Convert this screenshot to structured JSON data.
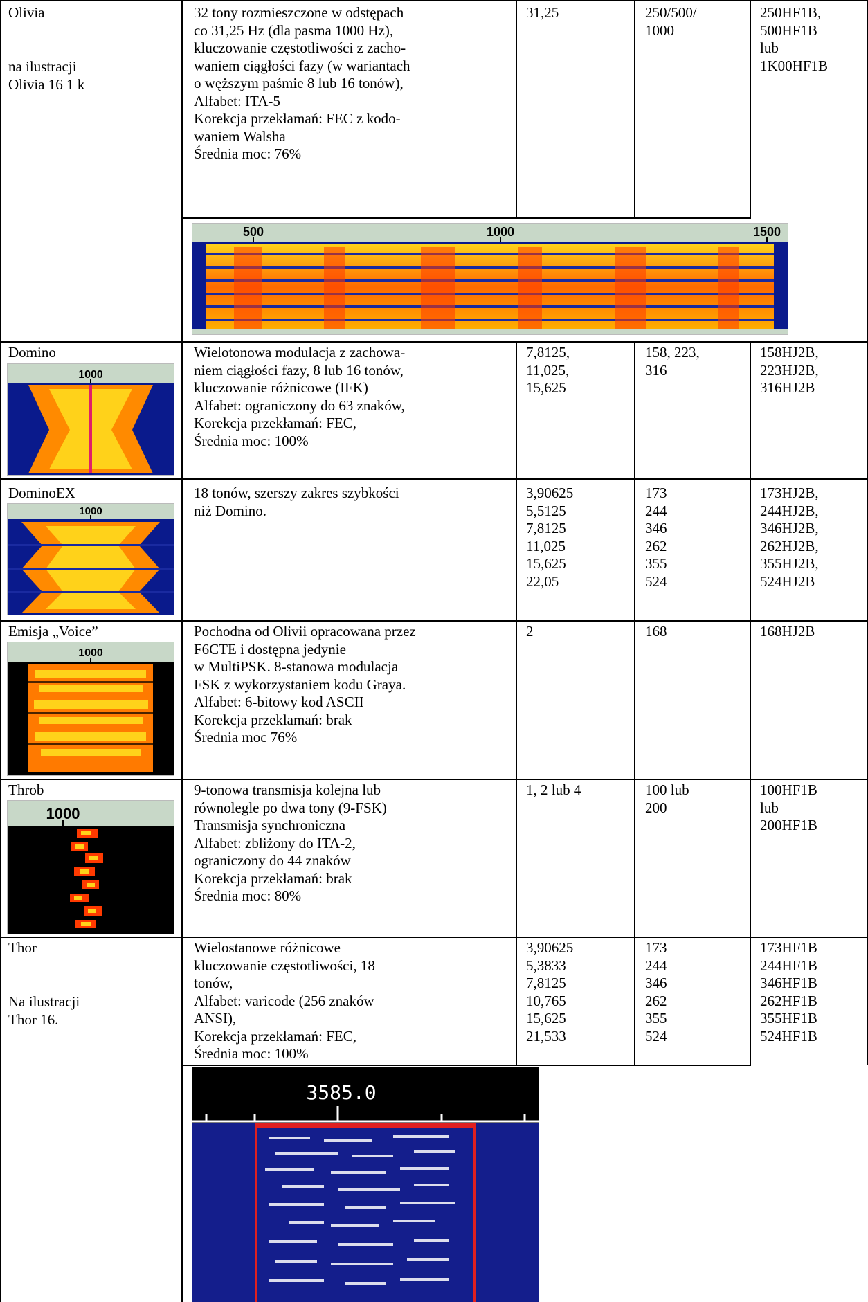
{
  "rows": [
    {
      "mode": "Olivia",
      "mode_note": "na ilustracji\nOlivia 16 1 k",
      "description": "32 tony rozmieszczone w odstępach\nco 31,25 Hz (dla pasma 1000 Hz),\nkluczowanie częstotliwości z zacho-\nwaniem ciągłości fazy (w wariantach\no węższym paśmie 8 lub 16 tonów),\nAlfabet: ITA-5\nKorekcja przekłamań: FEC z kodo-\nwaniem Walsha\nŚrednia moc: 76%",
      "speed": "31,25",
      "bandwidth": "250/500/\n1000",
      "designation": "250HF1B,\n500HF1B\nlub\n1K00HF1B",
      "spectrum_scale": [
        "500",
        "1000",
        "1500"
      ]
    },
    {
      "mode": "Domino",
      "description": "Wielotonowa modulacja z zachowa-\nniem ciągłości fazy, 8 lub 16 tonów,\nkluczowanie różnicowe (IFK)\nAlfabet: ograniczony do 63 znaków,\nKorekcja przekłamań: FEC,\nŚrednia moc: 100%",
      "speed": "7,8125,\n11,025,\n15,625",
      "bandwidth": "158, 223,\n316",
      "designation": "158HJ2B,\n223HJ2B,\n316HJ2B",
      "spectrum_scale": "1000"
    },
    {
      "mode": "DominoEX",
      "description": "18 tonów, szerszy zakres szybkości\nniż Domino.",
      "speed": "3,90625\n5,5125\n7,8125\n11,025\n15,625\n22,05",
      "bandwidth": "173\n244\n346\n262\n355\n524",
      "designation": "173HJ2B,\n244HJ2B,\n346HJ2B,\n262HJ2B,\n355HJ2B,\n524HJ2B",
      "spectrum_scale": "1000"
    },
    {
      "mode": "Emisja „Voice”",
      "description": "Pochodna od Olivii opracowana przez\nF6CTE i dostępna jedynie\nw MultiPSK. 8-stanowa modulacja\nFSK z wykorzystaniem kodu Graya.\nAlfabet: 6-bitowy kod ASCII\nKorekcja przeklamań: brak\nŚrednia moc 76%",
      "speed": "2",
      "bandwidth": "168",
      "designation": "168HJ2B",
      "spectrum_scale": "1000"
    },
    {
      "mode": "Throb",
      "description": "9-tonowa transmisja kolejna lub\nrównolegle po dwa tony (9-FSK)\nTransmisja synchroniczna\nAlfabet: zbliżony do ITA-2,\nograniczony do 44 znaków\nKorekcja przekłamań: brak\nŚrednia moc: 80%",
      "speed": "1, 2 lub 4",
      "bandwidth": "100 lub\n200",
      "designation": "100HF1B\nlub\n200HF1B",
      "spectrum_scale": "1000"
    },
    {
      "mode": "Thor",
      "mode_note": "Na ilustracji\nThor 16.",
      "description": "Wielostanowe różnicowe\nkluczowanie częstotliwości, 18\ntonów,\nAlfabet: varicode (256 znaków\nANSI),\nKorekcja przekłamań: FEC,\nŚrednia moc: 100%",
      "speed": "3,90625\n5,3833\n7,8125\n10,765\n15,625\n21,533",
      "bandwidth": "173\n244\n346\n262\n355\n524",
      "designation": "173HF1B\n244HF1B\n346HF1B\n262HF1B\n355HF1B\n524HF1B",
      "spectrum_scale": "3585.0"
    }
  ],
  "colors": {
    "waterfall_bg": "#0a1a8c",
    "waterfall_hot": "#ffd21a",
    "waterfall_warm": "#ff5a00",
    "thor_bg": "#141e8c",
    "thor_marker": "#e02020",
    "scale_bg": "#c8d8c8"
  }
}
